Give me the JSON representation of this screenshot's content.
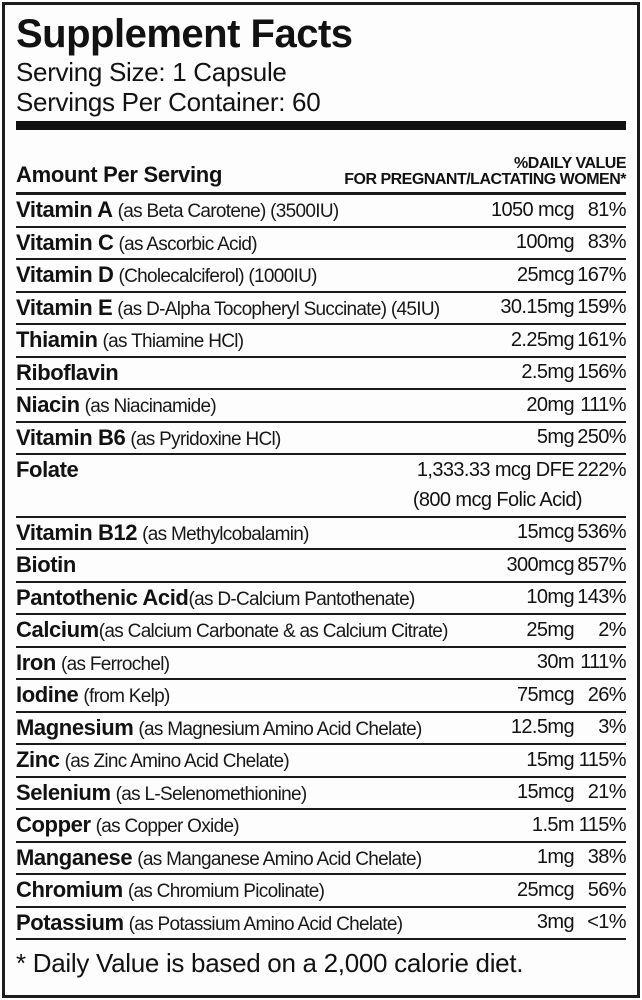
{
  "label": {
    "title": "Supplement Facts",
    "serving_size": "Serving Size: 1 Capsule",
    "servings_per_container": "Servings Per Container: 60",
    "header": {
      "amount_col": "Amount Per Serving",
      "dv_col_line1": "%DAILY VALUE",
      "dv_col_line2": "FOR PREGNANT/LACTATING WOMEN*"
    },
    "rows": [
      {
        "name": "Vitamin A",
        "detail": "(as Beta Carotene) (3500IU)",
        "amount": "1050 mcg",
        "dv": "81%"
      },
      {
        "name": "Vitamin C",
        "detail": "(as Ascorbic Acid)",
        "amount": "100mg",
        "dv": "83%"
      },
      {
        "name": "Vitamin D",
        "detail": "(Cholecalciferol) (1000IU)",
        "amount": "25mcg",
        "dv": "167%"
      },
      {
        "name": "Vitamin E",
        "detail": "(as D-Alpha Tocopheryl Succinate) (45IU)",
        "amount": "30.15mg",
        "dv": "159%"
      },
      {
        "name": "Thiamin",
        "detail": "(as Thiamine HCl)",
        "amount": "2.25mg",
        "dv": "161%"
      },
      {
        "name": "Riboflavin",
        "detail": "",
        "amount": "2.5mg",
        "dv": "156%"
      },
      {
        "name": "Niacin",
        "detail": "(as Niacinamide)",
        "amount": "20mg",
        "dv": "111%"
      },
      {
        "name": "Vitamin B6",
        "detail": "(as Pyridoxine HCl)",
        "amount": "5mg",
        "dv": "250%"
      },
      {
        "name": "Folate",
        "detail": "",
        "amount": "1,333.33 mcg DFE",
        "dv": "222%",
        "note": "(800 mcg Folic Acid)"
      },
      {
        "name": "Vitamin B12",
        "detail": "(as Methylcobalamin)",
        "amount": "15mcg",
        "dv": "536%"
      },
      {
        "name": "Biotin",
        "detail": "",
        "amount": "300mcg",
        "dv": "857%"
      },
      {
        "name": "Pantothenic Acid",
        "detail": "(as D-Calcium Pantothenate)",
        "amount": "10mg",
        "dv": "143%",
        "nospace": true
      },
      {
        "name": "Calcium",
        "detail": "(as Calcium Carbonate & as Calcium Citrate)",
        "amount": "25mg",
        "dv": "2%",
        "nospace": true
      },
      {
        "name": "Iron",
        "detail": "(as Ferrochel)",
        "amount": "30m",
        "dv": "111%"
      },
      {
        "name": "Iodine",
        "detail": "(from Kelp)",
        "amount": "75mcg",
        "dv": "26%"
      },
      {
        "name": "Magnesium",
        "detail": "(as Magnesium Amino Acid Chelate)",
        "amount": "12.5mg",
        "dv": "3%"
      },
      {
        "name": "Zinc",
        "detail": "(as Zinc Amino Acid Chelate)",
        "amount": "15mg",
        "dv": "115%"
      },
      {
        "name": "Selenium",
        "detail": "(as L-Selenomethionine)",
        "amount": "15mcg",
        "dv": "21%"
      },
      {
        "name": "Copper",
        "detail": "(as Copper Oxide)",
        "amount": "1.5m",
        "dv": "115%"
      },
      {
        "name": "Manganese",
        "detail": "(as Manganese Amino Acid Chelate)",
        "amount": "1mg",
        "dv": "38%"
      },
      {
        "name": "Chromium",
        "detail": "(as Chromium Picolinate)",
        "amount": "25mcg",
        "dv": "56%"
      },
      {
        "name": "Potassium",
        "detail": "(as Potassium Amino Acid Chelate)",
        "amount": "3mg",
        "dv": "<1%"
      }
    ],
    "footnote": "* Daily Value is based on a 2,000 calorie diet.",
    "colors": {
      "text": "#121212",
      "border": "#1c1c1c",
      "background": "#fdfdfd",
      "rule": "#1a1a1a"
    }
  }
}
